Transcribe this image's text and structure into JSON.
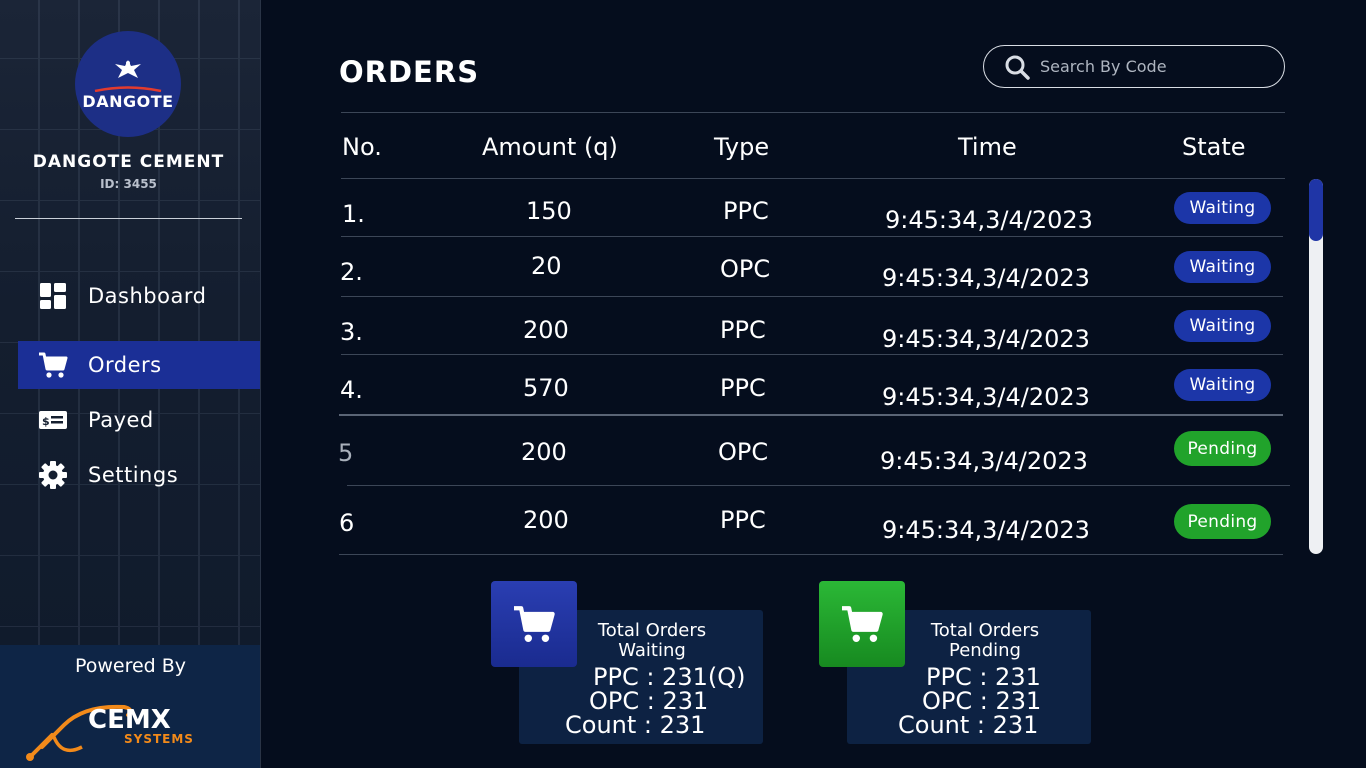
{
  "sidebar": {
    "logo_text": "DANGOTE",
    "company_name": "DANGOTE CEMENT",
    "company_id": "ID: 3455",
    "nav": [
      {
        "label": "Dashboard",
        "icon": "dashboard-icon"
      },
      {
        "label": "Orders",
        "icon": "cart-icon",
        "active": true
      },
      {
        "label": "Payed",
        "icon": "cash-icon"
      },
      {
        "label": "Settings",
        "icon": "gear-icon"
      }
    ],
    "powered_by": "Powered By",
    "brand": "CEMX",
    "brand_sub": "SYSTEMS"
  },
  "header": {
    "title": "ORDERS",
    "search_placeholder": "Search By Code"
  },
  "table": {
    "columns": [
      "No.",
      "Amount (q)",
      "Type",
      "Time",
      "State"
    ],
    "rows": [
      {
        "no": "1.",
        "amount": "150",
        "type": "PPC",
        "time": "9:45:34,3/4/2023",
        "state": "Waiting"
      },
      {
        "no": "2.",
        "amount": "20",
        "type": "OPC",
        "time": "9:45:34,3/4/2023",
        "state": "Waiting"
      },
      {
        "no": "3.",
        "amount": "200",
        "type": "PPC",
        "time": "9:45:34,3/4/2023",
        "state": "Waiting"
      },
      {
        "no": "4.",
        "amount": "570",
        "type": "PPC",
        "time": "9:45:34,3/4/2023",
        "state": "Waiting"
      },
      {
        "no": "5",
        "amount": "200",
        "type": "OPC",
        "time": "9:45:34,3/4/2023",
        "state": "Pending"
      },
      {
        "no": "6",
        "amount": "200",
        "type": "PPC",
        "time": "9:45:34,3/4/2023",
        "state": "Pending"
      }
    ]
  },
  "summary": [
    {
      "title_line1": "Total Orders",
      "title_line2": "Waiting",
      "ppc": "PPC : 231(Q)",
      "opc": "OPC : 231",
      "count": "Count : 231"
    },
    {
      "title_line1": "Total Orders",
      "title_line2": "Pending",
      "ppc": "PPC : 231",
      "opc": "OPC : 231",
      "count": "Count : 231"
    }
  ],
  "colors": {
    "background": "#050d1d",
    "accent": "#1b2f96",
    "waiting": "#1c36a8",
    "pending": "#21a32b",
    "card": "#0d2243",
    "brand_orange": "#f28a1a"
  }
}
